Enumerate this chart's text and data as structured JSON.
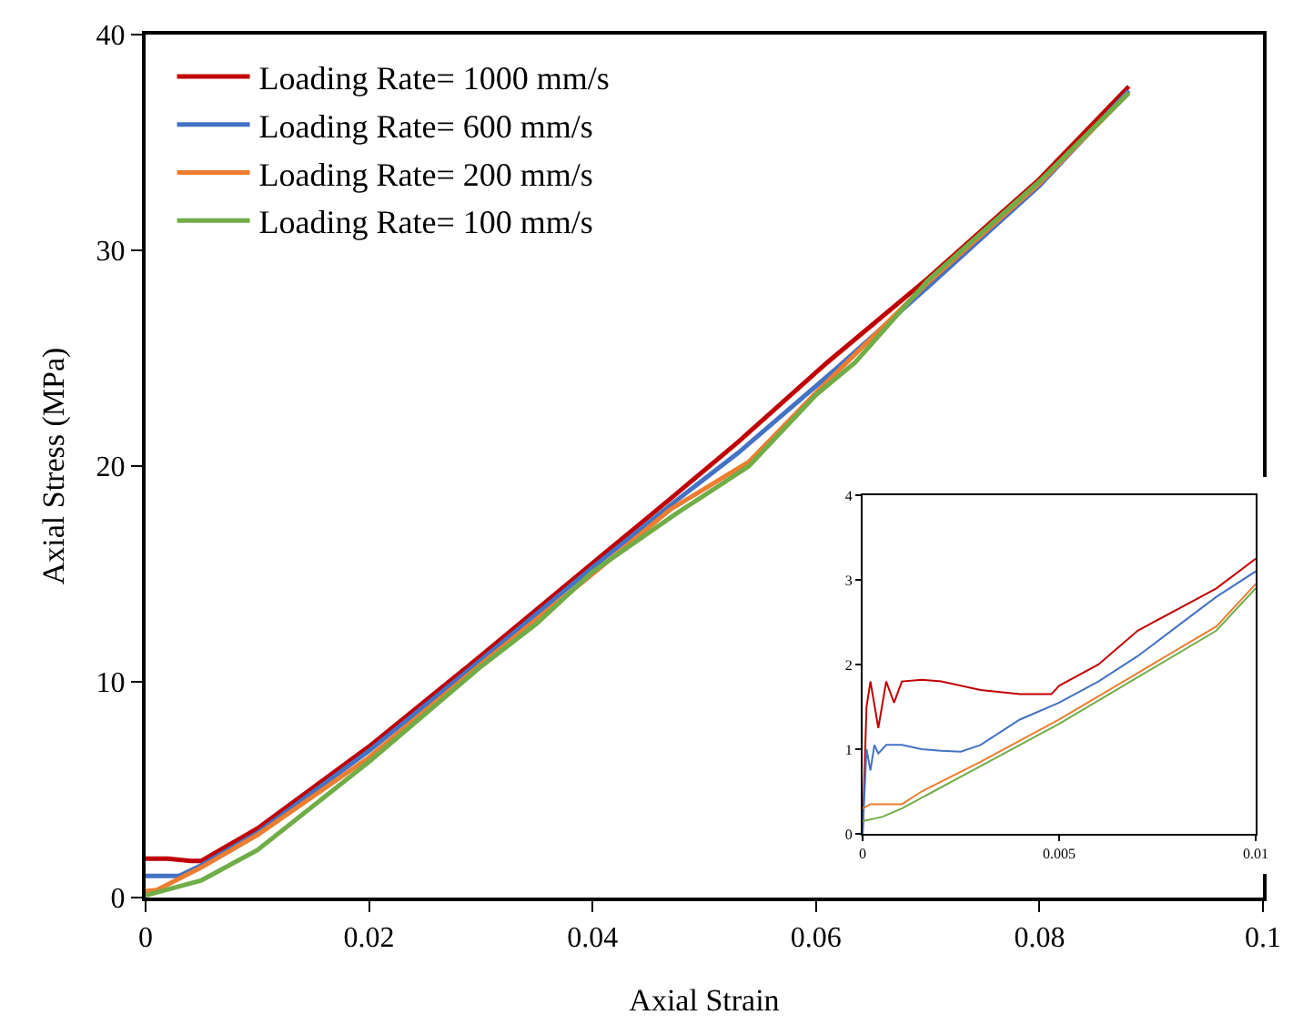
{
  "chart_data": [
    {
      "type": "line",
      "xlabel": "Axial Strain",
      "ylabel": "Axial Stress (MPa)",
      "xlim": [
        0,
        0.1
      ],
      "xticks": [
        0,
        0.02,
        0.04,
        0.06,
        0.08,
        0.1
      ],
      "ylim": [
        0,
        40
      ],
      "yticks": [
        0,
        10,
        20,
        30,
        40
      ],
      "grid": false,
      "legend": "top left",
      "marker": "none",
      "line_style": "solid",
      "series": [
        {
          "name": "Loading Rate= 1000 mm/s",
          "color": "#c00000",
          "x": [
            0,
            0.002,
            0.004,
            0.005,
            0.008,
            0.01,
            0.02,
            0.03,
            0.04,
            0.047,
            0.053,
            0.061,
            0.07,
            0.08,
            0.088
          ],
          "values": [
            1.8,
            1.8,
            1.7,
            1.7,
            2.6,
            3.2,
            7.0,
            11.2,
            15.5,
            18.5,
            21.1,
            24.8,
            28.7,
            33.3,
            37.6
          ]
        },
        {
          "name": "Loading Rate= 600 mm/s",
          "color": "#4472c4",
          "x": [
            0,
            0.003,
            0.005,
            0.01,
            0.02,
            0.03,
            0.04,
            0.047,
            0.053,
            0.062,
            0.07,
            0.08,
            0.088
          ],
          "values": [
            1.0,
            1.0,
            1.5,
            3.0,
            6.8,
            11.0,
            15.3,
            18.2,
            20.6,
            24.6,
            28.3,
            33.0,
            37.4
          ]
        },
        {
          "name": "Loading Rate= 200 mm/s",
          "color": "#ed7d31",
          "x": [
            0,
            0.001,
            0.005,
            0.01,
            0.02,
            0.03,
            0.04,
            0.047,
            0.054,
            0.06,
            0.07,
            0.08,
            0.088
          ],
          "values": [
            0.3,
            0.35,
            1.4,
            2.9,
            6.5,
            10.8,
            15.0,
            18.0,
            20.2,
            23.4,
            28.5,
            33.1,
            37.3
          ]
        },
        {
          "name": "Loading Rate= 100 mm/s",
          "color": "#70ad47",
          "x": [
            0,
            0.005,
            0.01,
            0.02,
            0.03,
            0.035,
            0.04,
            0.0475,
            0.054,
            0.06,
            0.0635,
            0.07,
            0.08,
            0.088
          ],
          "values": [
            0.1,
            0.8,
            2.2,
            6.3,
            10.7,
            12.7,
            15.1,
            17.8,
            20.0,
            23.3,
            24.8,
            28.6,
            33.2,
            37.3
          ]
        }
      ]
    },
    {
      "type": "line",
      "xlim": [
        0,
        0.01
      ],
      "xticks": [
        0,
        0.005,
        0.01
      ],
      "ylim": [
        0,
        4
      ],
      "yticks": [
        0,
        1,
        2,
        3,
        4
      ],
      "grid": false,
      "legend": false,
      "marker": "none",
      "line_style": "solid",
      "series": [
        {
          "color": "#c00000",
          "x": [
            0,
            0.0001,
            0.0002,
            0.0004,
            0.0006,
            0.0008,
            0.001,
            0.0015,
            0.002,
            0.003,
            0.004,
            0.0048,
            0.005,
            0.006,
            0.007,
            0.008,
            0.009,
            0.01
          ],
          "values": [
            0,
            1.5,
            1.8,
            1.25,
            1.8,
            1.55,
            1.8,
            1.82,
            1.8,
            1.7,
            1.65,
            1.65,
            1.75,
            2.0,
            2.4,
            2.65,
            2.9,
            3.25
          ]
        },
        {
          "color": "#4472c4",
          "x": [
            0,
            0.0001,
            0.0002,
            0.0003,
            0.0004,
            0.0006,
            0.001,
            0.0015,
            0.002,
            0.0025,
            0.003,
            0.004,
            0.005,
            0.006,
            0.007,
            0.008,
            0.009,
            0.01
          ],
          "values": [
            0,
            1.0,
            0.75,
            1.05,
            0.95,
            1.05,
            1.05,
            1.0,
            0.98,
            0.97,
            1.05,
            1.35,
            1.55,
            1.8,
            2.1,
            2.45,
            2.8,
            3.1
          ]
        },
        {
          "color": "#ed7d31",
          "x": [
            0,
            0.0002,
            0.001,
            0.0015,
            0.003,
            0.005,
            0.007,
            0.009,
            0.01
          ],
          "values": [
            0.3,
            0.35,
            0.35,
            0.5,
            0.85,
            1.35,
            1.9,
            2.45,
            2.95
          ]
        },
        {
          "color": "#70ad47",
          "x": [
            0,
            0.0005,
            0.001,
            0.003,
            0.005,
            0.007,
            0.009,
            0.01
          ],
          "values": [
            0.15,
            0.2,
            0.3,
            0.8,
            1.3,
            1.85,
            2.4,
            2.9
          ]
        }
      ]
    }
  ]
}
